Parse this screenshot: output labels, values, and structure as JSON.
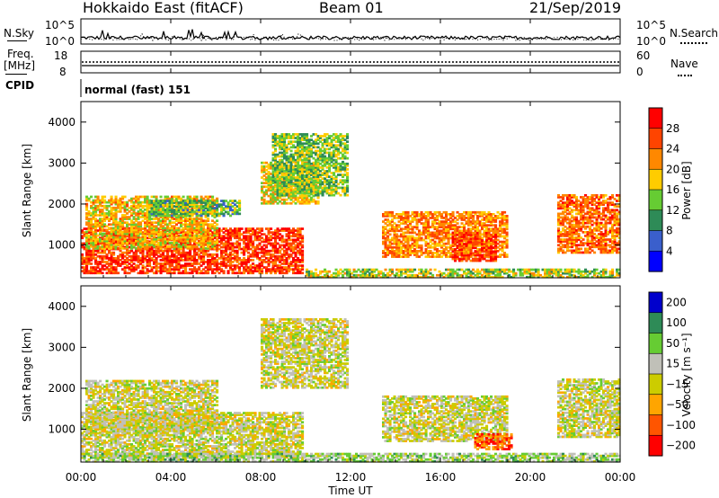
{
  "header": {
    "title": "Hokkaido East (fitACF)",
    "beam": "Beam 01",
    "date": "21/Sep/2019"
  },
  "left_labels": {
    "nsky": "N.Sky",
    "freq_line1": "Freq.",
    "freq_line2": "[MHz]",
    "cpid": "CPID"
  },
  "right_labels": {
    "nsearch": "N.Search",
    "nave": "Nave"
  },
  "noise_panel": {
    "y_top_label": "10^5",
    "y_bottom_label": "10^0"
  },
  "freq_panel": {
    "left_top": "18",
    "left_bottom": "8",
    "right_top": "60",
    "right_bottom": "0"
  },
  "cpid_panel": {
    "text": "normal (fast) 151"
  },
  "colors": {
    "power": [
      "#0000ff",
      "#3a5fcc",
      "#2e8b57",
      "#66cc33",
      "#ffcc00",
      "#ff8800",
      "#ff4400",
      "#ff0000"
    ],
    "velocity": [
      "#ff0000",
      "#ff5500",
      "#ffa500",
      "#cccc00",
      "#c0c0b8",
      "#66cc33",
      "#2e8b57",
      "#0000cc"
    ]
  },
  "chart_data": [
    {
      "type": "heatmap",
      "name": "power",
      "ylabel": "Slant Range [km]",
      "xlabel": "Time UT",
      "x_ticks": [
        "00:00",
        "04:00",
        "08:00",
        "12:00",
        "16:00",
        "20:00",
        "00:00"
      ],
      "y_ticks": [
        1000,
        2000,
        3000,
        4000
      ],
      "ylim": [
        200,
        4500
      ],
      "colorbar": {
        "label": "Power [dB]",
        "ticks": [
          4,
          8,
          12,
          16,
          20,
          24,
          28
        ]
      },
      "regions": [
        {
          "t0": 0.0,
          "t1": 9.8,
          "r0": 300,
          "r1": 1400,
          "level": 0.85
        },
        {
          "t0": 0.2,
          "t1": 6.0,
          "r0": 900,
          "r1": 2200,
          "level": 0.6
        },
        {
          "t0": 3.0,
          "t1": 7.0,
          "r0": 1700,
          "r1": 2100,
          "level": 0.4
        },
        {
          "t0": 8.0,
          "t1": 10.5,
          "r0": 2000,
          "r1": 3000,
          "level": 0.55
        },
        {
          "t0": 8.5,
          "t1": 11.8,
          "r0": 2200,
          "r1": 3700,
          "level": 0.45
        },
        {
          "t0": 13.4,
          "t1": 19.0,
          "r0": 700,
          "r1": 1800,
          "level": 0.7
        },
        {
          "t0": 16.5,
          "t1": 18.5,
          "r0": 600,
          "r1": 1300,
          "level": 0.85
        },
        {
          "t0": 21.2,
          "t1": 24.0,
          "r0": 800,
          "r1": 2200,
          "level": 0.75
        },
        {
          "t0": 10.0,
          "t1": 24.0,
          "r0": 200,
          "r1": 400,
          "level": 0.5
        }
      ]
    },
    {
      "type": "heatmap",
      "name": "velocity",
      "ylabel": "Slant Range [km]",
      "xlabel": "Time UT",
      "x_ticks": [
        "00:00",
        "04:00",
        "08:00",
        "12:00",
        "16:00",
        "20:00",
        "00:00"
      ],
      "y_ticks": [
        1000,
        2000,
        3000,
        4000
      ],
      "ylim": [
        200,
        4500
      ],
      "colorbar": {
        "label": "Velocity [m s⁻¹]",
        "ticks": [
          "200",
          "100",
          "50",
          "15",
          "−15",
          "−50",
          "−100",
          "−200"
        ]
      },
      "regions": [
        {
          "t0": 0.0,
          "t1": 9.8,
          "r0": 300,
          "r1": 1400,
          "level": 0.5
        },
        {
          "t0": 0.2,
          "t1": 6.0,
          "r0": 900,
          "r1": 2200,
          "level": 0.5
        },
        {
          "t0": 8.0,
          "t1": 11.8,
          "r0": 2000,
          "r1": 3700,
          "level": 0.5
        },
        {
          "t0": 13.4,
          "t1": 19.0,
          "r0": 700,
          "r1": 1800,
          "level": 0.5
        },
        {
          "t0": 17.5,
          "t1": 19.2,
          "r0": 500,
          "r1": 900,
          "level": 0.2
        },
        {
          "t0": 21.2,
          "t1": 24.0,
          "r0": 800,
          "r1": 2200,
          "level": 0.5
        },
        {
          "t0": 0.0,
          "t1": 24.0,
          "r0": 200,
          "r1": 400,
          "level": 0.62
        }
      ]
    }
  ]
}
